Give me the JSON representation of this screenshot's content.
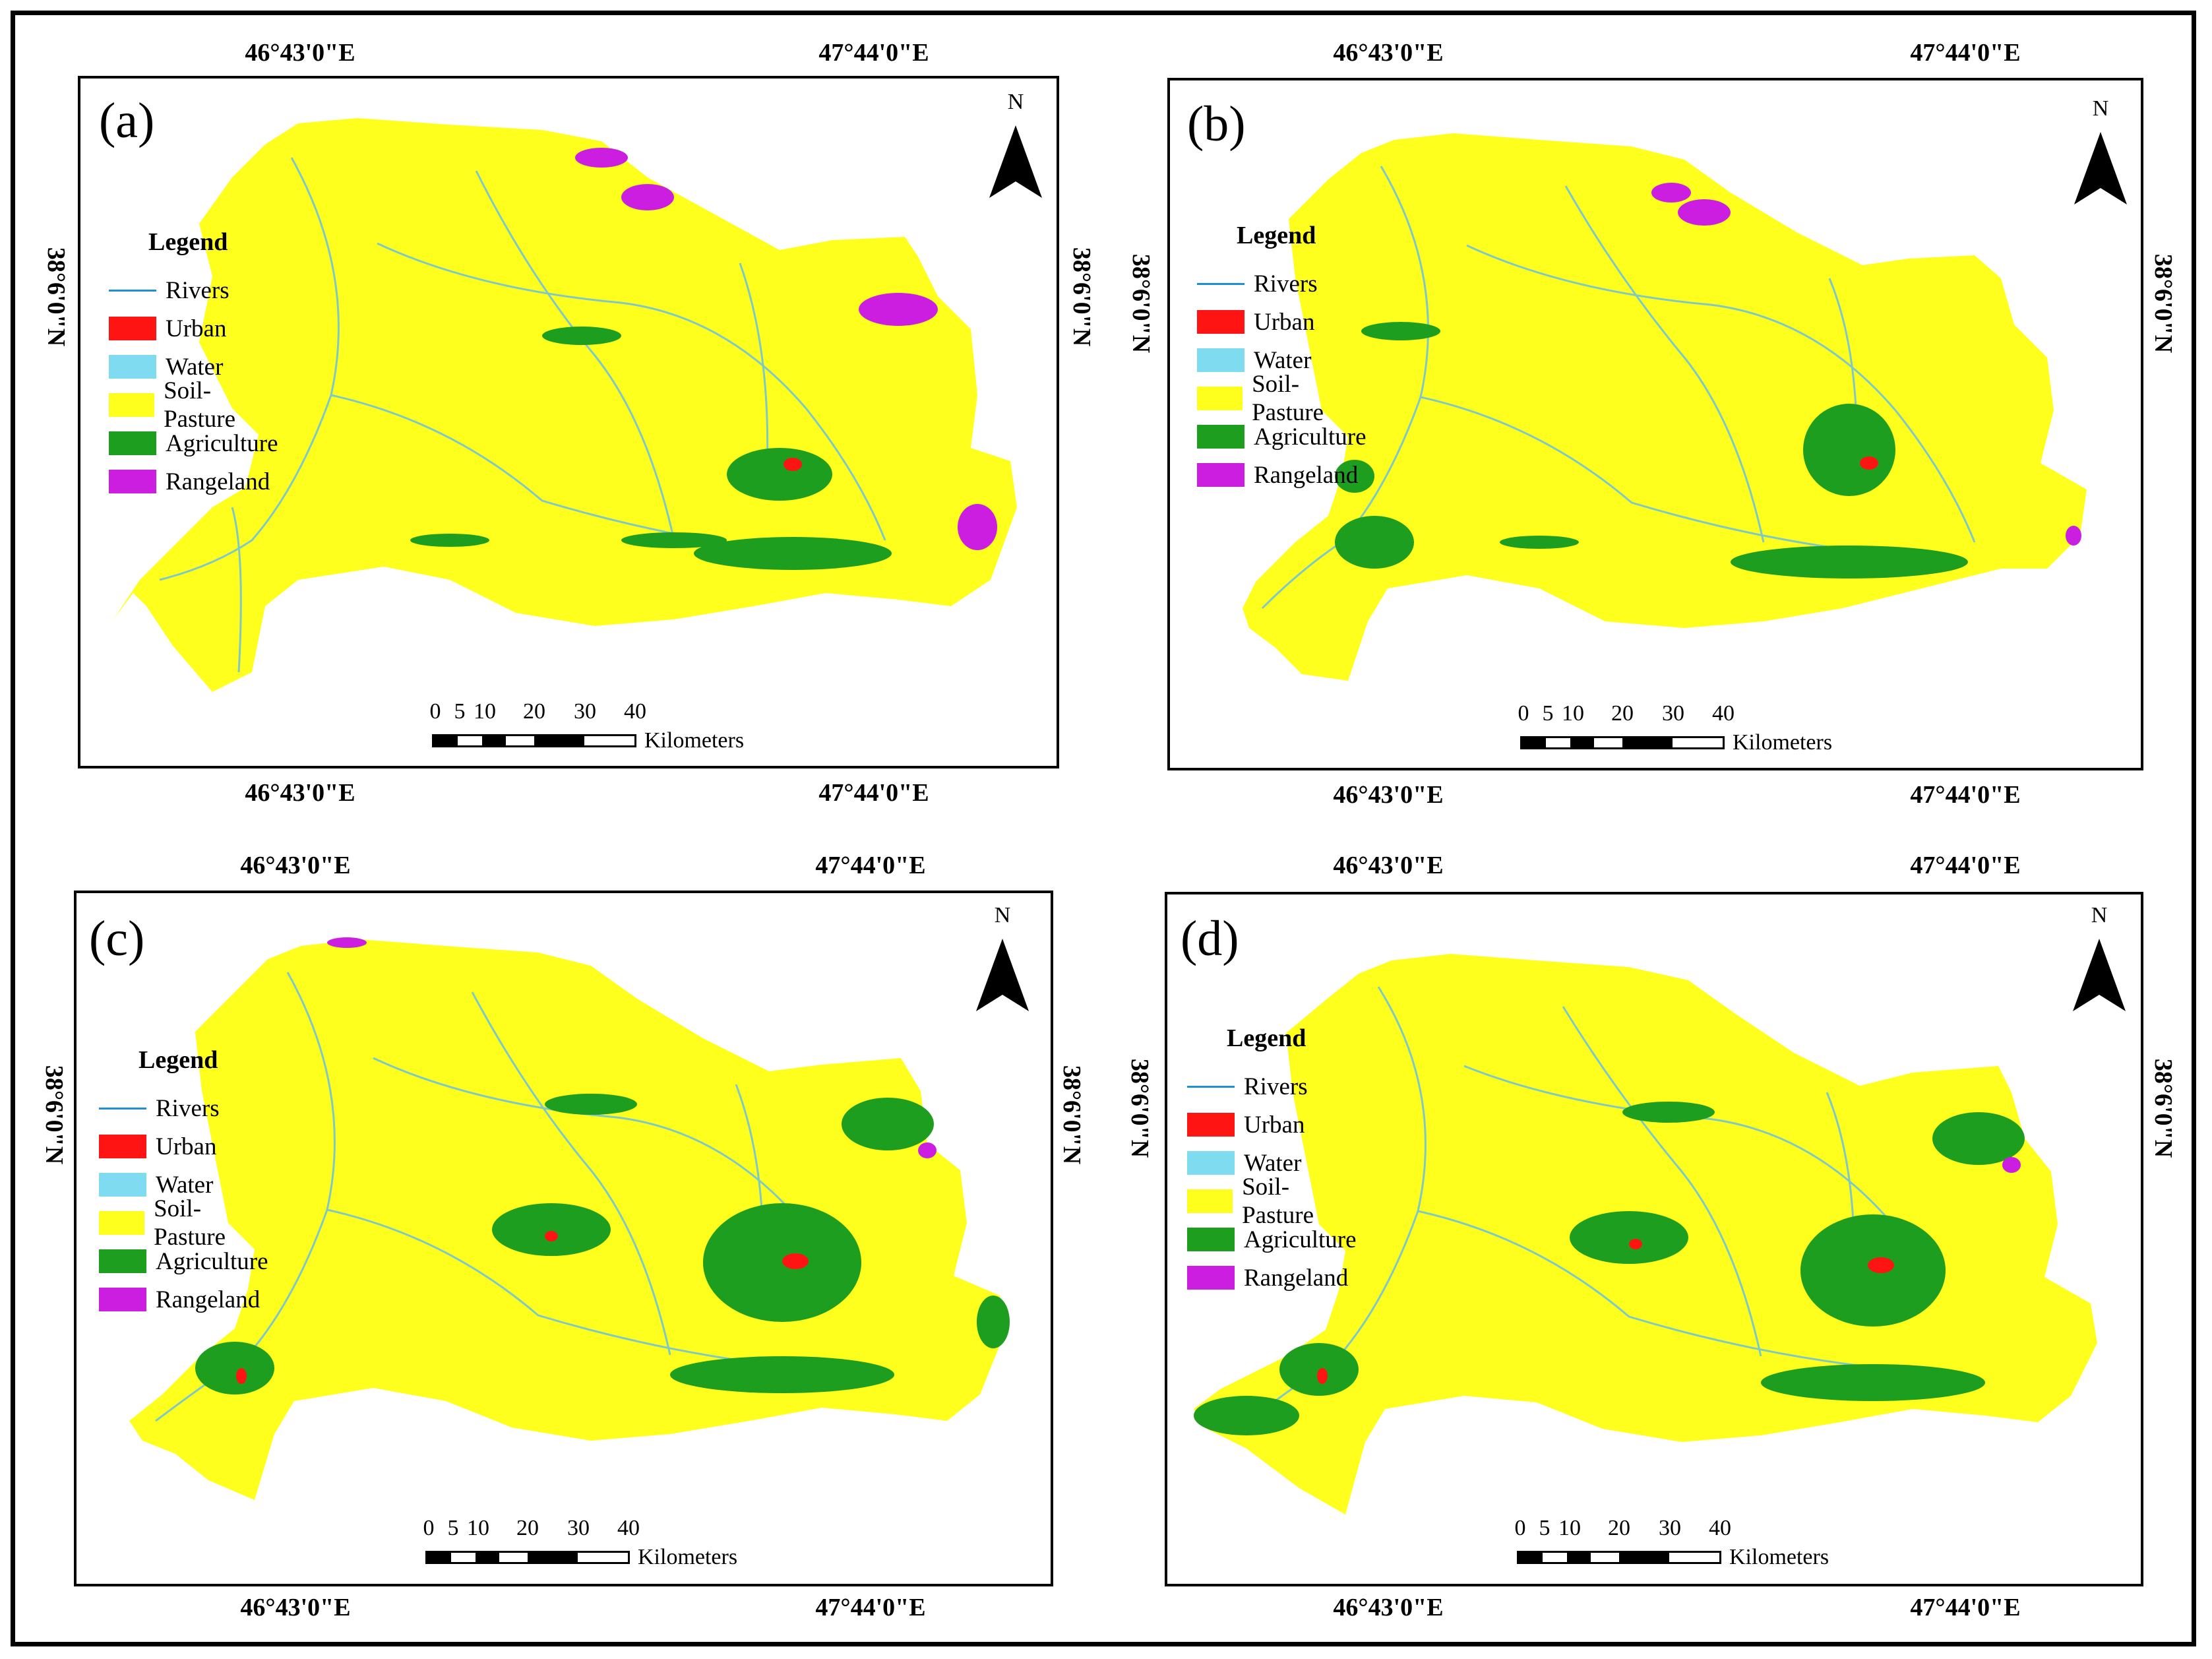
{
  "map": {
    "lon_labels": [
      "46°43'0\"E",
      "47°44'0\"E"
    ],
    "lat_label": "38°6'0\"N",
    "north_label": "N",
    "legend_title": "Legend",
    "legend_items": [
      {
        "label": "Rivers",
        "color": "#1e8ed6",
        "symbol": "line"
      },
      {
        "label": "Urban",
        "color": "#ff1414",
        "symbol": "box"
      },
      {
        "label": "Water",
        "color": "#7fdcf0",
        "symbol": "box"
      },
      {
        "label": "Soil-Pasture",
        "color": "#ffff1e",
        "symbol": "box"
      },
      {
        "label": "Agriculture",
        "color": "#1e9e1e",
        "symbol": "box"
      },
      {
        "label": "Rangeland",
        "color": "#cc1ee0",
        "symbol": "box"
      }
    ],
    "scale": {
      "ticks": [
        "0",
        "5",
        "10",
        "20",
        "30",
        "40"
      ],
      "unit": "Kilometers"
    },
    "panels": [
      {
        "id": "a",
        "letter": "(a)"
      },
      {
        "id": "b",
        "letter": "(b)"
      },
      {
        "id": "c",
        "letter": "(c)"
      },
      {
        "id": "d",
        "letter": "(d)"
      }
    ]
  }
}
